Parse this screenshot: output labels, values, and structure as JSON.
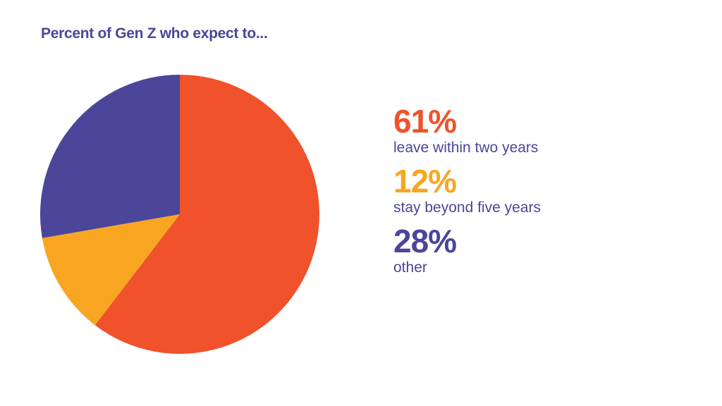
{
  "chart_data": {
    "type": "pie",
    "title": "Percent of Gen Z who expect to...",
    "title_color": "#4B4699",
    "slices": [
      {
        "label": "leave within two years",
        "value": 61,
        "value_label": "61%",
        "color": "#F0522B"
      },
      {
        "label": "stay beyond five years",
        "value": 12,
        "value_label": "12%",
        "color": "#F8A622"
      },
      {
        "label": "other",
        "value": 28,
        "value_label": "28%",
        "color": "#4B4699"
      }
    ],
    "start_angle": "12 o'clock",
    "direction": "clockwise",
    "legend_position": "right",
    "legend_label_color": "#4B4699"
  }
}
